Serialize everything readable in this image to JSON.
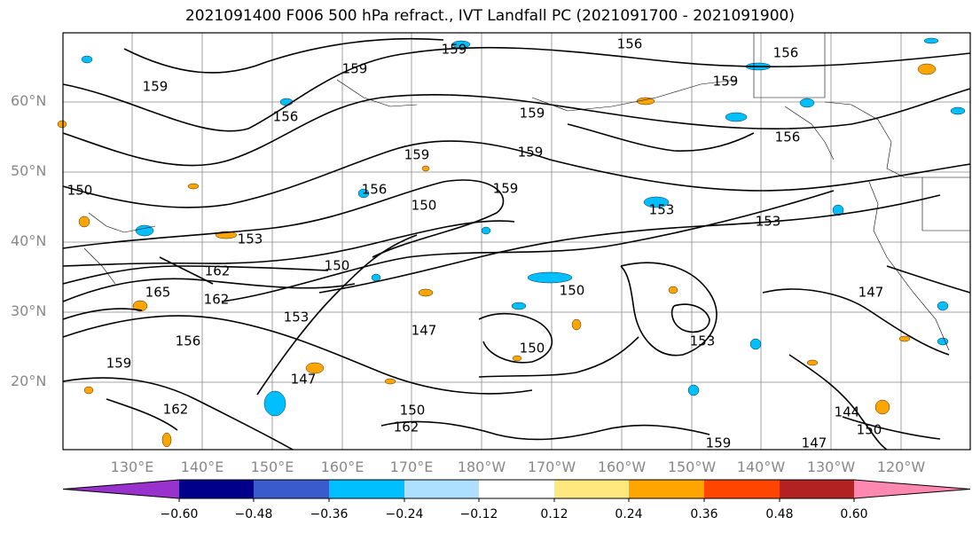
{
  "title": "2021091400 F006 500 hPa refract., IVT Landfall PC (2021091700 - 2021091900)",
  "latitude_labels": [
    "60°N",
    "50°N",
    "40°N",
    "30°N",
    "20°N"
  ],
  "longitude_labels": [
    "130°E",
    "140°E",
    "150°E",
    "160°E",
    "170°E",
    "180°W",
    "170°W",
    "160°W",
    "150°W",
    "140°W",
    "130°W",
    "120°W"
  ],
  "contour_labels": [
    "159",
    "159",
    "156",
    "156",
    "159",
    "159",
    "156",
    "159",
    "159",
    "159",
    "156",
    "150",
    "150",
    "159",
    "153",
    "153",
    "153",
    "156",
    "162",
    "165",
    "162",
    "153",
    "150",
    "147",
    "147",
    "150",
    "150",
    "153",
    "147",
    "156",
    "159",
    "162",
    "162",
    "150",
    "159",
    "144",
    "150",
    "147"
  ],
  "colorbar": {
    "colors": [
      "#9932CC",
      "#00008B",
      "#3A5BCC",
      "#00BFFF",
      "#ADDFFF",
      "#FFFFFF",
      "#FFE97F",
      "#FFA500",
      "#FF4500",
      "#B22222",
      "#FF88B0"
    ],
    "tick_labels": [
      "−0.60",
      "−0.48",
      "−0.36",
      "−0.24",
      "−0.12",
      "0.12",
      "0.24",
      "0.36",
      "0.48",
      "0.60"
    ]
  },
  "colors": {
    "gridline": "#888888",
    "contour": "#000000",
    "positive_shade": "#FFA500",
    "negative_shade": "#00BFFF"
  }
}
